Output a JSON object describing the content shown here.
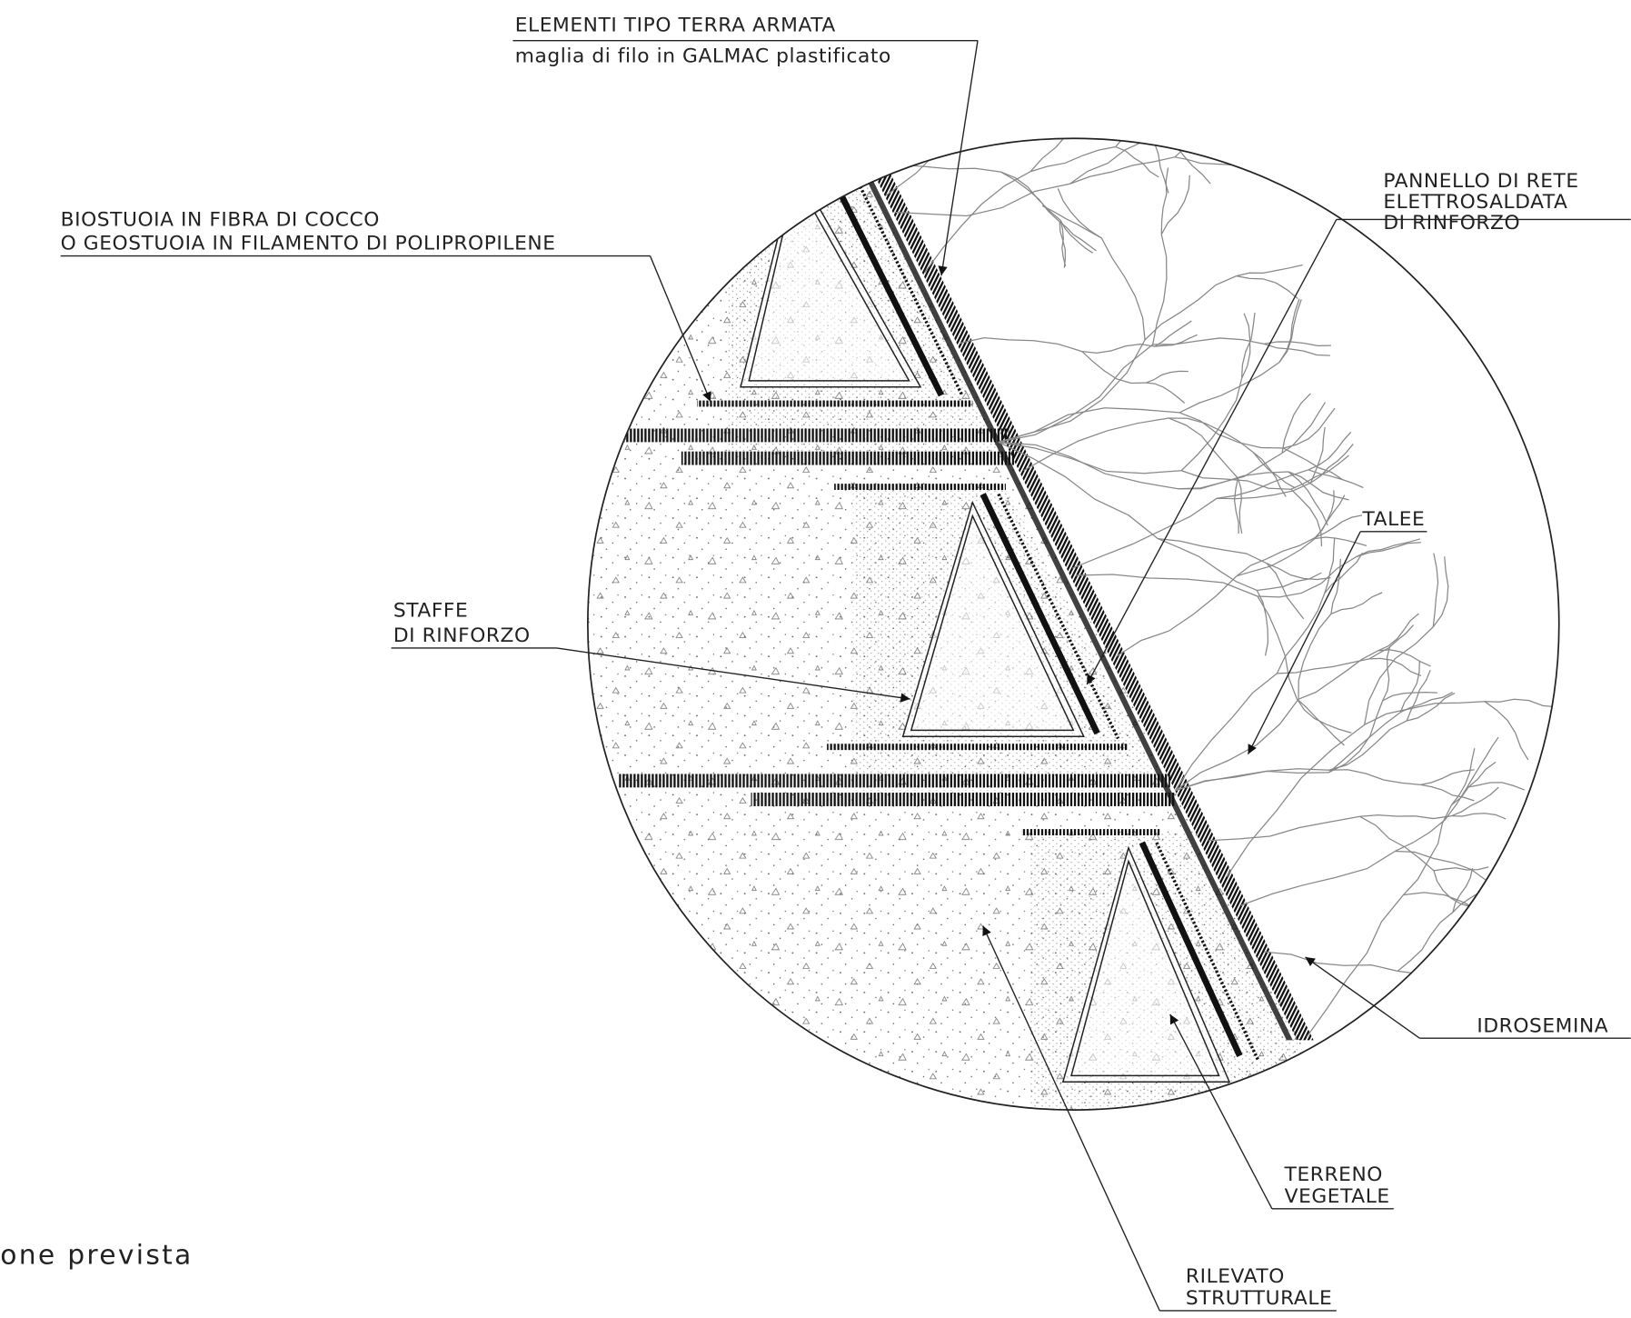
{
  "callouts": {
    "terra_armata": [
      "ELEMENTI TIPO TERRA ARMATA",
      "maglia di filo in GALMAC plastificato"
    ],
    "pannello": [
      "PANNELLO DI RETE",
      "ELETTROSALDATA",
      "DI RINFORZO"
    ],
    "biostuoia": [
      "BIOSTUOIA IN FIBRA DI COCCO",
      "O GEOSTUOIA IN FILAMENTO DI POLIPROPILENE"
    ],
    "talee": [
      "TALEE"
    ],
    "staffe": [
      "STAFFE",
      "DI RINFORZO"
    ],
    "idrosemina": [
      "IDROSEMINA"
    ],
    "terreno": [
      "TERRENO",
      "VEGETALE"
    ],
    "rilevato": [
      "RILEVATO",
      "STRUTTURALE"
    ]
  },
  "caption": "one prevista"
}
